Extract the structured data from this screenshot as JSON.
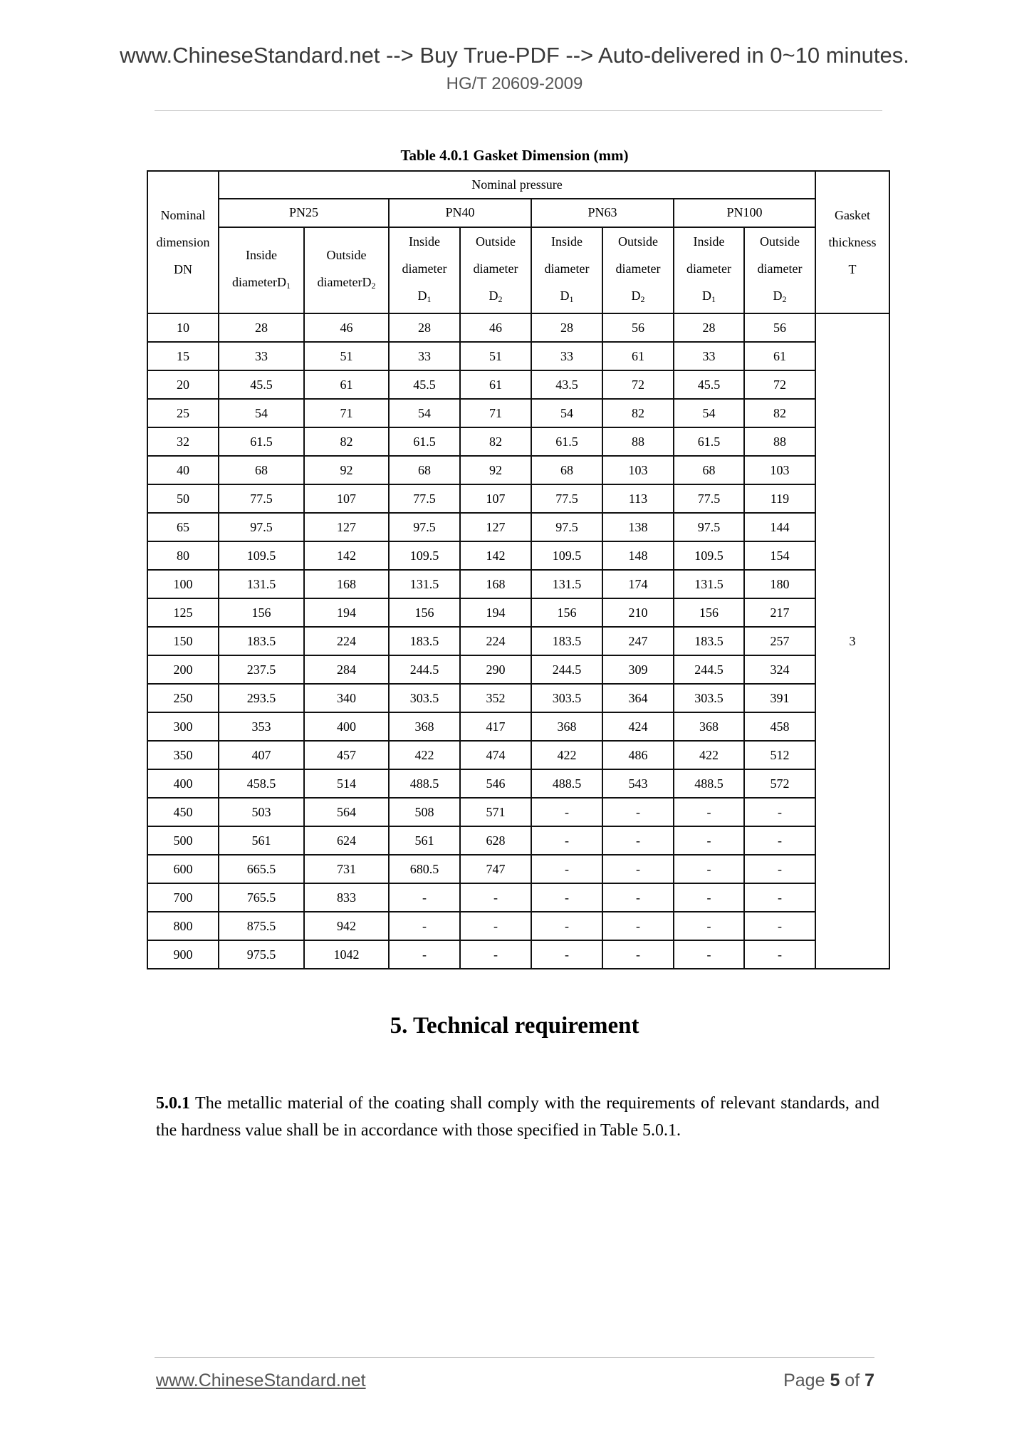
{
  "header": {
    "banner": "www.ChineseStandard.net --> Buy True-PDF --> Auto-delivered in 0~10 minutes.",
    "standard": "HG/T 20609-2009"
  },
  "table": {
    "caption": "Table 4.0.1 Gasket Dimension (mm)",
    "col_nominal": [
      "Nominal",
      "dimension",
      "DN"
    ],
    "group_label": "Nominal pressure",
    "gasket": [
      "Gasket",
      "thickness",
      "T"
    ],
    "pn": [
      "PN25",
      "PN40",
      "PN63",
      "PN100"
    ],
    "pn25_inside": [
      "Inside",
      "diameterD",
      "1"
    ],
    "pn25_outside": [
      "Outside",
      "diameterD",
      "2"
    ],
    "inside": [
      "Inside",
      "diameter",
      "D",
      "1"
    ],
    "outside": [
      "Outside",
      "diameter",
      "D",
      "2"
    ],
    "thickness_value": "3",
    "rows": [
      [
        "10",
        "28",
        "46",
        "28",
        "46",
        "28",
        "56",
        "28",
        "56"
      ],
      [
        "15",
        "33",
        "51",
        "33",
        "51",
        "33",
        "61",
        "33",
        "61"
      ],
      [
        "20",
        "45.5",
        "61",
        "45.5",
        "61",
        "43.5",
        "72",
        "45.5",
        "72"
      ],
      [
        "25",
        "54",
        "71",
        "54",
        "71",
        "54",
        "82",
        "54",
        "82"
      ],
      [
        "32",
        "61.5",
        "82",
        "61.5",
        "82",
        "61.5",
        "88",
        "61.5",
        "88"
      ],
      [
        "40",
        "68",
        "92",
        "68",
        "92",
        "68",
        "103",
        "68",
        "103"
      ],
      [
        "50",
        "77.5",
        "107",
        "77.5",
        "107",
        "77.5",
        "113",
        "77.5",
        "119"
      ],
      [
        "65",
        "97.5",
        "127",
        "97.5",
        "127",
        "97.5",
        "138",
        "97.5",
        "144"
      ],
      [
        "80",
        "109.5",
        "142",
        "109.5",
        "142",
        "109.5",
        "148",
        "109.5",
        "154"
      ],
      [
        "100",
        "131.5",
        "168",
        "131.5",
        "168",
        "131.5",
        "174",
        "131.5",
        "180"
      ],
      [
        "125",
        "156",
        "194",
        "156",
        "194",
        "156",
        "210",
        "156",
        "217"
      ],
      [
        "150",
        "183.5",
        "224",
        "183.5",
        "224",
        "183.5",
        "247",
        "183.5",
        "257"
      ],
      [
        "200",
        "237.5",
        "284",
        "244.5",
        "290",
        "244.5",
        "309",
        "244.5",
        "324"
      ],
      [
        "250",
        "293.5",
        "340",
        "303.5",
        "352",
        "303.5",
        "364",
        "303.5",
        "391"
      ],
      [
        "300",
        "353",
        "400",
        "368",
        "417",
        "368",
        "424",
        "368",
        "458"
      ],
      [
        "350",
        "407",
        "457",
        "422",
        "474",
        "422",
        "486",
        "422",
        "512"
      ],
      [
        "400",
        "458.5",
        "514",
        "488.5",
        "546",
        "488.5",
        "543",
        "488.5",
        "572"
      ],
      [
        "450",
        "503",
        "564",
        "508",
        "571",
        "-",
        "-",
        "-",
        "-"
      ],
      [
        "500",
        "561",
        "624",
        "561",
        "628",
        "-",
        "-",
        "-",
        "-"
      ],
      [
        "600",
        "665.5",
        "731",
        "680.5",
        "747",
        "-",
        "-",
        "-",
        "-"
      ],
      [
        "700",
        "765.5",
        "833",
        "-",
        "-",
        "-",
        "-",
        "-",
        "-"
      ],
      [
        "800",
        "875.5",
        "942",
        "-",
        "-",
        "-",
        "-",
        "-",
        "-"
      ],
      [
        "900",
        "975.5",
        "1042",
        "-",
        "-",
        "-",
        "-",
        "-",
        "-"
      ]
    ]
  },
  "section": {
    "title": "5. Technical requirement",
    "clause_number": "5.0.1",
    "clause_text": " The metallic material of the coating shall comply with the requirements of relevant standards, and the hardness value shall be in accordance with those specified in Table 5.0.1."
  },
  "footer": {
    "link": "www.ChineseStandard.net",
    "page_prefix": "Page ",
    "page_current": "5",
    "page_mid": " of ",
    "page_total": "7"
  }
}
